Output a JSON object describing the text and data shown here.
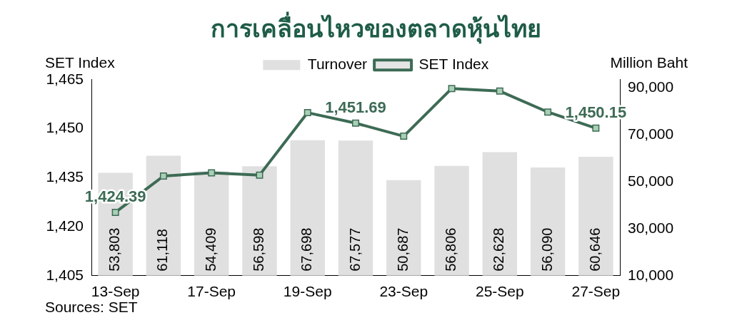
{
  "chart_data": {
    "type": "bar",
    "title": "การเคลื่อนไหวของตลาดหุ้นไทย",
    "ylabel": "SET Index",
    "y2label": "Million Baht",
    "categories": [
      "13-Sep",
      null,
      "17-Sep",
      null,
      "19-Sep",
      null,
      "23-Sep",
      null,
      "25-Sep",
      null,
      "27-Sep"
    ],
    "series": [
      {
        "name": "Turnover",
        "axis": "y2",
        "color": "#e0e0e0",
        "values": [
          53803,
          61118,
          54409,
          56598,
          67698,
          67577,
          50687,
          56806,
          62628,
          56090,
          60646
        ],
        "value_labels": [
          "53,803",
          "61,118",
          "54,409",
          "56,598",
          "67,698",
          "67,577",
          "50,687",
          "56,806",
          "62,628",
          "56,090",
          "60,646"
        ]
      },
      {
        "name": "SET Index",
        "type": "line",
        "color": "#3d6b55",
        "values": [
          1424.39,
          1435.5,
          1436.5,
          1435.8,
          1454.9,
          1451.69,
          1447.7,
          1462.3,
          1461.5,
          1455.1,
          1450.15
        ],
        "value_labels": [
          "1,424.39",
          null,
          null,
          null,
          null,
          "1,451.69",
          null,
          null,
          null,
          null,
          "1,450.15"
        ]
      }
    ],
    "ylim": [
      1405,
      1465
    ],
    "yticks": [
      {
        "value": 1405,
        "label": "1,405"
      },
      {
        "value": 1420,
        "label": "1,420"
      },
      {
        "value": 1435,
        "label": "1,435"
      },
      {
        "value": 1450,
        "label": "1,450"
      },
      {
        "value": 1465,
        "label": "1,465"
      }
    ],
    "y2lim": [
      10000,
      93500
    ],
    "y2ticks": [
      {
        "value": 10000,
        "label": "10,000"
      },
      {
        "value": 30000,
        "label": "30,000"
      },
      {
        "value": 50000,
        "label": "50,000"
      },
      {
        "value": 70000,
        "label": "70,000"
      },
      {
        "value": 90000,
        "label": "90,000"
      }
    ],
    "grid": false,
    "legend": "top",
    "marker": "square",
    "line_style": "solid",
    "annotations": [
      "Sources: SET"
    ]
  }
}
